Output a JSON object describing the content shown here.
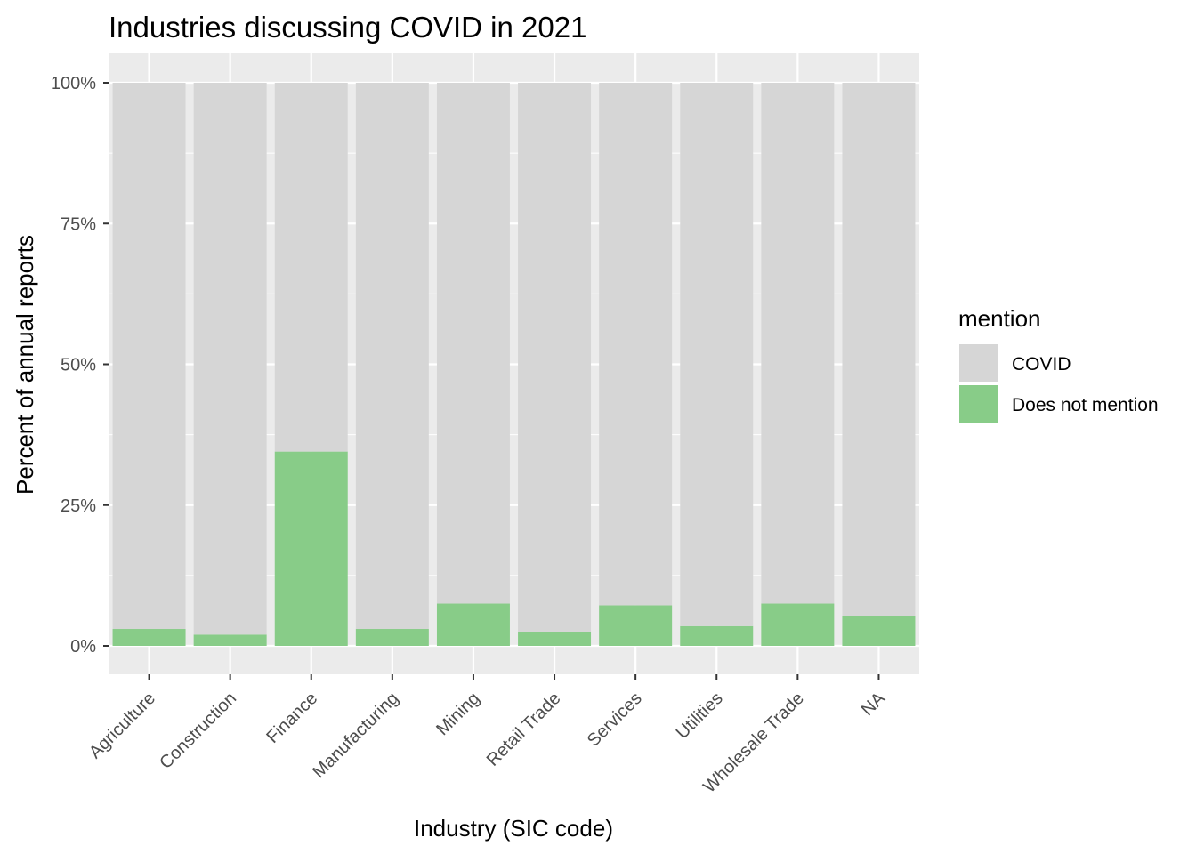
{
  "chart_data": {
    "type": "bar",
    "stacked": true,
    "percent": true,
    "title": "Industries discussing COVID in 2021",
    "xlabel": "Industry (SIC code)",
    "ylabel": "Percent of annual reports",
    "categories": [
      "Agriculture",
      "Construction",
      "Finance",
      "Manufacturing",
      "Mining",
      "Retail Trade",
      "Services",
      "Utilities",
      "Wholesale Trade",
      "NA"
    ],
    "series": [
      {
        "name": "COVID",
        "color": "#d6d6d6",
        "values": [
          0.97,
          0.98,
          0.655,
          0.97,
          0.925,
          0.975,
          0.928,
          0.965,
          0.925,
          0.947
        ]
      },
      {
        "name": "Does not mention",
        "color": "#88cc88",
        "values": [
          0.03,
          0.02,
          0.345,
          0.03,
          0.075,
          0.025,
          0.072,
          0.035,
          0.075,
          0.053
        ]
      }
    ],
    "ylim": [
      0,
      1
    ],
    "yticks": [
      0,
      0.25,
      0.5,
      0.75,
      1
    ],
    "ytick_labels": [
      "0%",
      "25%",
      "50%",
      "75%",
      "100%"
    ],
    "grid": true,
    "panel_background": "#ebebeb",
    "legend": {
      "title": "mention",
      "position": "right"
    }
  }
}
